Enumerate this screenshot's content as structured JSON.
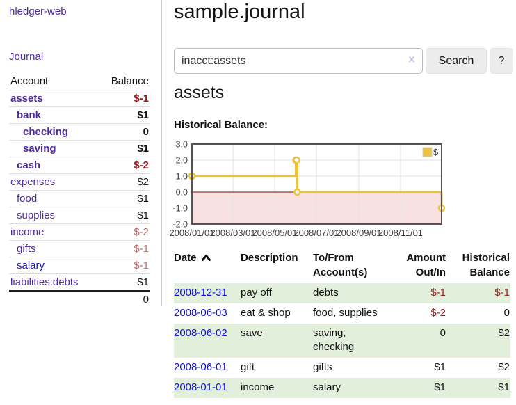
{
  "app": {
    "title": "hledger-web"
  },
  "nav": {
    "journal_label": "Journal"
  },
  "colors": {
    "accent_purple": "#4f2a9f",
    "link_blue": "#1512dd",
    "negative_strong": "#9d1c1c",
    "negative_muted": "#c46a6a",
    "stripe_green": "#e1efdb",
    "chart_series_yellow": "#edc240",
    "chart_negative_fill": "#f9e1e1",
    "chart_zero_line": "#8b0000"
  },
  "sidebar": {
    "header": {
      "account": "Account",
      "balance": "Balance"
    },
    "rows": [
      {
        "name": "assets",
        "balance": "$-1",
        "indent": 1,
        "bold": true
      },
      {
        "name": "bank",
        "balance": "$1",
        "indent": 2,
        "bold": true
      },
      {
        "name": "checking",
        "balance": "0",
        "indent": 3,
        "bold": true
      },
      {
        "name": "saving",
        "balance": "$1",
        "indent": 3,
        "bold": true
      },
      {
        "name": "cash",
        "balance": "$-2",
        "indent": 2,
        "bold": true
      },
      {
        "name": "expenses",
        "balance": "$2",
        "indent": 1,
        "bold": false
      },
      {
        "name": "food",
        "balance": "$1",
        "indent": 2,
        "bold": false
      },
      {
        "name": "supplies",
        "balance": "$1",
        "indent": 2,
        "bold": false
      },
      {
        "name": "income",
        "balance": "$-2",
        "indent": 1,
        "bold": false
      },
      {
        "name": "gifts",
        "balance": "$-1",
        "indent": 2,
        "bold": false
      },
      {
        "name": "salary",
        "balance": "$-1",
        "indent": 2,
        "bold": false,
        "unvisited": true
      },
      {
        "name": "liabilities:debts",
        "balance": "$1",
        "indent": 1,
        "bold": false
      }
    ],
    "total": "0"
  },
  "header": {
    "title": "sample.journal"
  },
  "search": {
    "value": "inacct:assets",
    "clear_icon": "×",
    "button_label": "Search",
    "help_label": "?"
  },
  "account_page": {
    "heading": "assets",
    "chart_label": "Historical Balance:"
  },
  "chart_data": {
    "type": "line",
    "title": "Historical Balance",
    "legend_label": "$",
    "legend_position": "top-right",
    "grid": true,
    "steps": true,
    "series": [
      {
        "name": "$",
        "color": "#edc240",
        "points": [
          [
            "2008-01-01",
            1
          ],
          [
            "2008-06-01",
            2
          ],
          [
            "2008-06-02",
            2
          ],
          [
            "2008-06-03",
            0
          ],
          [
            "2008-12-31",
            -1
          ]
        ]
      }
    ],
    "xlim": [
      "2008-01-01",
      "2008-12-31"
    ],
    "ylim": [
      -2,
      3
    ],
    "yticks": [
      {
        "value": 3,
        "label": "3.0"
      },
      {
        "value": 2,
        "label": "2.0"
      },
      {
        "value": 1,
        "label": "1.0"
      },
      {
        "value": 0,
        "label": "0.0"
      },
      {
        "value": -1,
        "label": "-1.0"
      },
      {
        "value": -2,
        "label": "-2.0"
      }
    ],
    "xticks": [
      {
        "date": "2008-01-01",
        "label": "2008/01/01"
      },
      {
        "date": "2008-03-01",
        "label": "2008/03/01"
      },
      {
        "date": "2008-05-01",
        "label": "2008/05/01"
      },
      {
        "date": "2008-07-01",
        "label": "2008/07/01"
      },
      {
        "date": "2008-09-01",
        "label": "2008/09/01"
      },
      {
        "date": "2008-11-01",
        "label": "2008/11/01"
      }
    ]
  },
  "register": {
    "columns": [
      {
        "label": "Date",
        "sorted": "asc"
      },
      {
        "label": "Description"
      },
      {
        "label": "To/From Account(s)"
      },
      {
        "label": "Amount Out/In",
        "align": "right"
      },
      {
        "label": "Historical Balance",
        "align": "right"
      }
    ],
    "rows": [
      {
        "date": "2008-12-31",
        "description": "pay off",
        "accounts": "debts",
        "amount": "$-1",
        "balance": "$-1"
      },
      {
        "date": "2008-06-03",
        "description": "eat & shop",
        "accounts": "food, supplies",
        "amount": "$-2",
        "balance": "0"
      },
      {
        "date": "2008-06-02",
        "description": "save",
        "accounts": "saving, checking",
        "amount": "0",
        "balance": "$2"
      },
      {
        "date": "2008-06-01",
        "description": "gift",
        "accounts": "gifts",
        "amount": "$1",
        "balance": "$2"
      },
      {
        "date": "2008-01-01",
        "description": "income",
        "accounts": "salary",
        "amount": "$1",
        "balance": "$1"
      }
    ]
  }
}
